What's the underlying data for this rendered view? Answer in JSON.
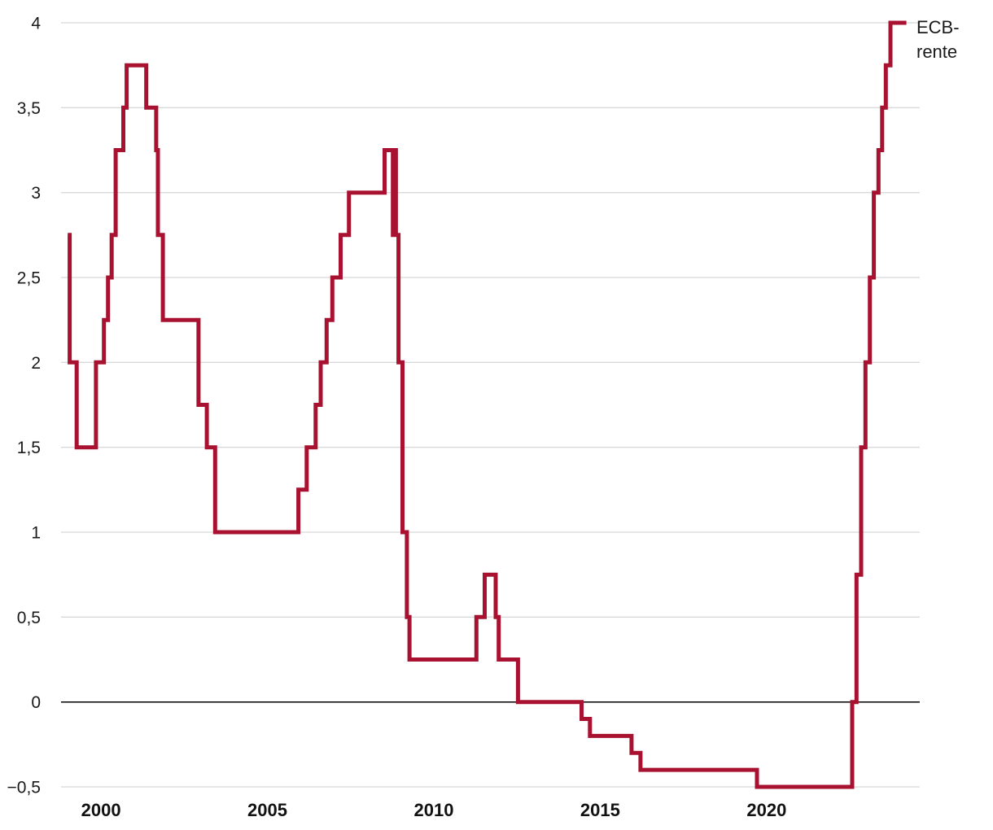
{
  "annotation": {
    "lines": [
      "ECB-",
      "rente"
    ]
  },
  "colors": {
    "line": "#a81230",
    "grid": "#cccccc",
    "zero_line": "#000000",
    "text": "#1a1a1a",
    "background": "#ffffff"
  },
  "chart_data": {
    "type": "line",
    "step": "after",
    "series_label": "ECB-rente",
    "x_range": [
      1998.8,
      2024.6
    ],
    "y_range": [
      -0.5,
      4
    ],
    "grid": "horizontal-only",
    "legend": "label at end of line, top right",
    "y_ticks": [
      {
        "value": -0.5,
        "label": "−0,5"
      },
      {
        "value": 0,
        "label": "0"
      },
      {
        "value": 0.5,
        "label": "0,5"
      },
      {
        "value": 1,
        "label": "1"
      },
      {
        "value": 1.5,
        "label": "1,5"
      },
      {
        "value": 2,
        "label": "2"
      },
      {
        "value": 2.5,
        "label": "2,5"
      },
      {
        "value": 3,
        "label": "3"
      },
      {
        "value": 3.5,
        "label": "3,5"
      },
      {
        "value": 4,
        "label": "4"
      }
    ],
    "x_ticks": [
      {
        "value": 2000,
        "label": "2000"
      },
      {
        "value": 2005,
        "label": "2005"
      },
      {
        "value": 2010,
        "label": "2010"
      },
      {
        "value": 2015,
        "label": "2015"
      },
      {
        "value": 2020,
        "label": "2020"
      }
    ],
    "series": [
      {
        "name": "ECB-rente",
        "points": [
          [
            1999.0,
            2.75
          ],
          [
            1999.06,
            2.0
          ],
          [
            1999.27,
            1.5
          ],
          [
            1999.85,
            2.0
          ],
          [
            2000.09,
            2.25
          ],
          [
            2000.21,
            2.5
          ],
          [
            2000.32,
            2.75
          ],
          [
            2000.44,
            3.25
          ],
          [
            2000.67,
            3.5
          ],
          [
            2000.77,
            3.75
          ],
          [
            2001.36,
            3.5
          ],
          [
            2001.66,
            3.25
          ],
          [
            2001.71,
            2.75
          ],
          [
            2001.86,
            2.25
          ],
          [
            2002.93,
            1.75
          ],
          [
            2003.18,
            1.5
          ],
          [
            2003.43,
            1.0
          ],
          [
            2005.93,
            1.25
          ],
          [
            2006.18,
            1.5
          ],
          [
            2006.45,
            1.75
          ],
          [
            2006.6,
            2.0
          ],
          [
            2006.78,
            2.25
          ],
          [
            2006.95,
            2.5
          ],
          [
            2007.2,
            2.75
          ],
          [
            2007.45,
            3.0
          ],
          [
            2008.52,
            3.25
          ],
          [
            2008.77,
            2.75
          ],
          [
            2008.8,
            3.25
          ],
          [
            2008.86,
            2.75
          ],
          [
            2008.94,
            2.0
          ],
          [
            2009.06,
            1.0
          ],
          [
            2009.19,
            0.5
          ],
          [
            2009.27,
            0.25
          ],
          [
            2011.28,
            0.5
          ],
          [
            2011.53,
            0.75
          ],
          [
            2011.86,
            0.5
          ],
          [
            2011.95,
            0.25
          ],
          [
            2012.53,
            0.0
          ],
          [
            2014.44,
            -0.1
          ],
          [
            2014.69,
            -0.2
          ],
          [
            2015.94,
            -0.3
          ],
          [
            2016.21,
            -0.4
          ],
          [
            2019.71,
            -0.5
          ],
          [
            2022.57,
            0.0
          ],
          [
            2022.7,
            0.75
          ],
          [
            2022.84,
            1.5
          ],
          [
            2022.97,
            2.0
          ],
          [
            2023.1,
            2.5
          ],
          [
            2023.22,
            3.0
          ],
          [
            2023.36,
            3.25
          ],
          [
            2023.47,
            3.5
          ],
          [
            2023.58,
            3.75
          ],
          [
            2023.72,
            4.0
          ],
          [
            2024.2,
            4.0
          ]
        ]
      }
    ]
  }
}
